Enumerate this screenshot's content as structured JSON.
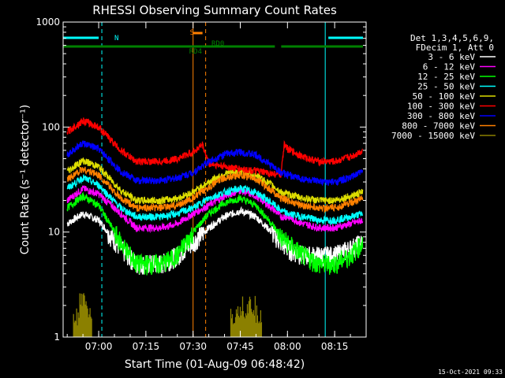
{
  "chart_data": {
    "type": "line",
    "title": "RHESSI Observing Summary Count Rates",
    "xlabel": "Start Time (01-Aug-09 06:48:42)",
    "ylabel": "Count Rate (s⁻¹ detector⁻¹)",
    "y_scale": "log",
    "xlim": [
      "06:48:42",
      "08:25:00"
    ],
    "ylim": [
      1,
      1000
    ],
    "x_ticks": [
      "07:00",
      "07:15",
      "07:30",
      "07:45",
      "08:00",
      "08:15"
    ],
    "y_ticks": [
      "1",
      "10",
      "100",
      "1000"
    ],
    "legend_header": [
      "Det 1,3,4,5,6,9,",
      "FDecim 1, Att 0"
    ],
    "legend_position": "right",
    "series": [
      {
        "name": "3 - 6 keV",
        "color": "#ffffff",
        "points": [
          [
            "06:50",
            12
          ],
          [
            "06:55",
            15
          ],
          [
            "07:00",
            13
          ],
          [
            "07:07",
            7
          ],
          [
            "07:12",
            5
          ],
          [
            "07:20",
            5
          ],
          [
            "07:25",
            6
          ],
          [
            "07:30",
            8
          ],
          [
            "07:35",
            11
          ],
          [
            "07:40",
            14
          ],
          [
            "07:45",
            16
          ],
          [
            "07:50",
            14
          ],
          [
            "07:55",
            10
          ],
          [
            "07:58",
            8
          ],
          [
            "08:00",
            7
          ],
          [
            "08:05",
            6
          ],
          [
            "08:10",
            6
          ],
          [
            "08:15",
            6
          ],
          [
            "08:20",
            7
          ],
          [
            "08:24",
            8
          ]
        ]
      },
      {
        "name": "6 - 12 keV",
        "color": "#ff00ff",
        "points": [
          [
            "06:50",
            20
          ],
          [
            "06:55",
            26
          ],
          [
            "07:00",
            23
          ],
          [
            "07:07",
            15
          ],
          [
            "07:12",
            11
          ],
          [
            "07:20",
            11
          ],
          [
            "07:25",
            12
          ],
          [
            "07:30",
            15
          ],
          [
            "07:35",
            18
          ],
          [
            "07:40",
            22
          ],
          [
            "07:45",
            25
          ],
          [
            "07:50",
            22
          ],
          [
            "07:55",
            17
          ],
          [
            "07:58",
            14
          ],
          [
            "08:00",
            14
          ],
          [
            "08:05",
            12
          ],
          [
            "08:10",
            11
          ],
          [
            "08:15",
            11
          ],
          [
            "08:20",
            12
          ],
          [
            "08:24",
            13
          ]
        ]
      },
      {
        "name": "12 - 25 keV",
        "color": "#00ff00",
        "points": [
          [
            "06:50",
            17
          ],
          [
            "06:55",
            22
          ],
          [
            "07:00",
            18
          ],
          [
            "07:07",
            8
          ],
          [
            "07:12",
            5
          ],
          [
            "07:20",
            5
          ],
          [
            "07:25",
            6
          ],
          [
            "07:30",
            10
          ],
          [
            "07:35",
            15
          ],
          [
            "07:40",
            19
          ],
          [
            "07:45",
            21
          ],
          [
            "07:50",
            18
          ],
          [
            "07:55",
            12
          ],
          [
            "07:58",
            9
          ],
          [
            "08:00",
            8
          ],
          [
            "08:05",
            6
          ],
          [
            "08:10",
            5
          ],
          [
            "08:15",
            5
          ],
          [
            "08:20",
            6
          ],
          [
            "08:24",
            8
          ]
        ]
      },
      {
        "name": "25 - 50 keV",
        "color": "#00ffff",
        "points": [
          [
            "06:50",
            26
          ],
          [
            "06:55",
            33
          ],
          [
            "07:00",
            28
          ],
          [
            "07:07",
            17
          ],
          [
            "07:12",
            14
          ],
          [
            "07:20",
            14
          ],
          [
            "07:25",
            15
          ],
          [
            "07:30",
            17
          ],
          [
            "07:35",
            21
          ],
          [
            "07:40",
            24
          ],
          [
            "07:45",
            26
          ],
          [
            "07:50",
            24
          ],
          [
            "07:55",
            19
          ],
          [
            "07:58",
            16
          ],
          [
            "08:00",
            15
          ],
          [
            "08:05",
            14
          ],
          [
            "08:10",
            13
          ],
          [
            "08:15",
            13
          ],
          [
            "08:20",
            14
          ],
          [
            "08:24",
            15
          ]
        ]
      },
      {
        "name": "50 - 100 keV",
        "color": "#dddd00",
        "points": [
          [
            "06:50",
            38
          ],
          [
            "06:55",
            48
          ],
          [
            "07:00",
            42
          ],
          [
            "07:07",
            25
          ],
          [
            "07:12",
            20
          ],
          [
            "07:20",
            20
          ],
          [
            "07:25",
            21
          ],
          [
            "07:30",
            24
          ],
          [
            "07:35",
            30
          ],
          [
            "07:40",
            36
          ],
          [
            "07:45",
            38
          ],
          [
            "07:50",
            35
          ],
          [
            "07:55",
            28
          ],
          [
            "07:58",
            24
          ],
          [
            "08:00",
            23
          ],
          [
            "08:05",
            21
          ],
          [
            "08:10",
            20
          ],
          [
            "08:15",
            20
          ],
          [
            "08:20",
            22
          ],
          [
            "08:24",
            24
          ]
        ]
      },
      {
        "name": "100 - 300 keV",
        "color": "#ff0000",
        "points": [
          [
            "06:50",
            90
          ],
          [
            "06:55",
            115
          ],
          [
            "07:00",
            100
          ],
          [
            "07:07",
            60
          ],
          [
            "07:12",
            47
          ],
          [
            "07:20",
            47
          ],
          [
            "07:25",
            50
          ],
          [
            "07:30",
            58
          ],
          [
            "07:33",
            68
          ],
          [
            "07:35",
            45
          ],
          [
            "07:40",
            42
          ],
          [
            "07:45",
            40
          ],
          [
            "07:50",
            38
          ],
          [
            "07:55",
            36
          ],
          [
            "07:58",
            35
          ],
          [
            "07:59",
            72
          ],
          [
            "08:00",
            62
          ],
          [
            "08:05",
            52
          ],
          [
            "08:10",
            47
          ],
          [
            "08:15",
            47
          ],
          [
            "08:20",
            52
          ],
          [
            "08:24",
            60
          ]
        ]
      },
      {
        "name": "300 - 800 keV",
        "color": "#0000ff",
        "points": [
          [
            "06:50",
            55
          ],
          [
            "06:55",
            70
          ],
          [
            "07:00",
            62
          ],
          [
            "07:07",
            38
          ],
          [
            "07:12",
            31
          ],
          [
            "07:20",
            31
          ],
          [
            "07:25",
            33
          ],
          [
            "07:30",
            37
          ],
          [
            "07:35",
            47
          ],
          [
            "07:40",
            55
          ],
          [
            "07:45",
            58
          ],
          [
            "07:50",
            54
          ],
          [
            "07:55",
            43
          ],
          [
            "07:58",
            37
          ],
          [
            "08:00",
            35
          ],
          [
            "08:05",
            32
          ],
          [
            "08:10",
            30
          ],
          [
            "08:15",
            30
          ],
          [
            "08:20",
            33
          ],
          [
            "08:24",
            38
          ]
        ]
      },
      {
        "name": "800 - 7000 keV",
        "color": "#ff8000",
        "points": [
          [
            "06:50",
            32
          ],
          [
            "06:55",
            40
          ],
          [
            "07:00",
            35
          ],
          [
            "07:07",
            21
          ],
          [
            "07:12",
            17
          ],
          [
            "07:20",
            17
          ],
          [
            "07:25",
            18
          ],
          [
            "07:30",
            21
          ],
          [
            "07:35",
            27
          ],
          [
            "07:40",
            33
          ],
          [
            "07:45",
            35
          ],
          [
            "07:50",
            32
          ],
          [
            "07:55",
            25
          ],
          [
            "07:58",
            21
          ],
          [
            "08:00",
            20
          ],
          [
            "08:05",
            18
          ],
          [
            "08:10",
            17
          ],
          [
            "08:15",
            17
          ],
          [
            "08:20",
            19
          ],
          [
            "08:24",
            21
          ]
        ]
      },
      {
        "name": "7000 - 15000 keV",
        "color": "#8b8000",
        "points": [
          [
            "06:52",
            1.7
          ],
          [
            "06:54",
            2.3
          ],
          [
            "06:56",
            2.0
          ],
          [
            "06:58",
            1.6
          ],
          [
            "07:42",
            1.7
          ],
          [
            "07:44",
            2.3
          ],
          [
            "07:46",
            2.1
          ],
          [
            "07:48",
            2.2
          ],
          [
            "07:50",
            1.8
          ],
          [
            "07:52",
            1.5
          ]
        ]
      }
    ],
    "flag_bars": [
      {
        "label": "N",
        "color": "#00ffff",
        "segments": [
          [
            "06:48:42",
            "07:00"
          ],
          [
            "08:13",
            "08:24"
          ]
        ]
      },
      {
        "label": "S",
        "color": "#ff8000",
        "segments": [
          [
            "07:30",
            "07:33"
          ]
        ]
      },
      {
        "label": "RD0",
        "color": "#008000",
        "segments": [
          [
            "07:33",
            "07:56"
          ]
        ]
      },
      {
        "label": "RD4",
        "color": "#008000",
        "segments": [
          [
            "06:48:42",
            "07:33"
          ],
          [
            "07:58",
            "08:24"
          ]
        ]
      }
    ],
    "vertical_lines": [
      {
        "time": "06:48:42",
        "color": "#00ffff",
        "style": "solid"
      },
      {
        "time": "07:01",
        "color": "#00ffff",
        "style": "dashed"
      },
      {
        "time": "07:30",
        "color": "#ff8000",
        "style": "solid"
      },
      {
        "time": "07:34",
        "color": "#ff8000",
        "style": "dashed"
      },
      {
        "time": "08:12",
        "color": "#00ffff",
        "style": "solid"
      },
      {
        "time": "08:25",
        "color": "#00ffff",
        "style": "dashed"
      }
    ],
    "footer_timestamp": "15-Oct-2021 09:33"
  }
}
